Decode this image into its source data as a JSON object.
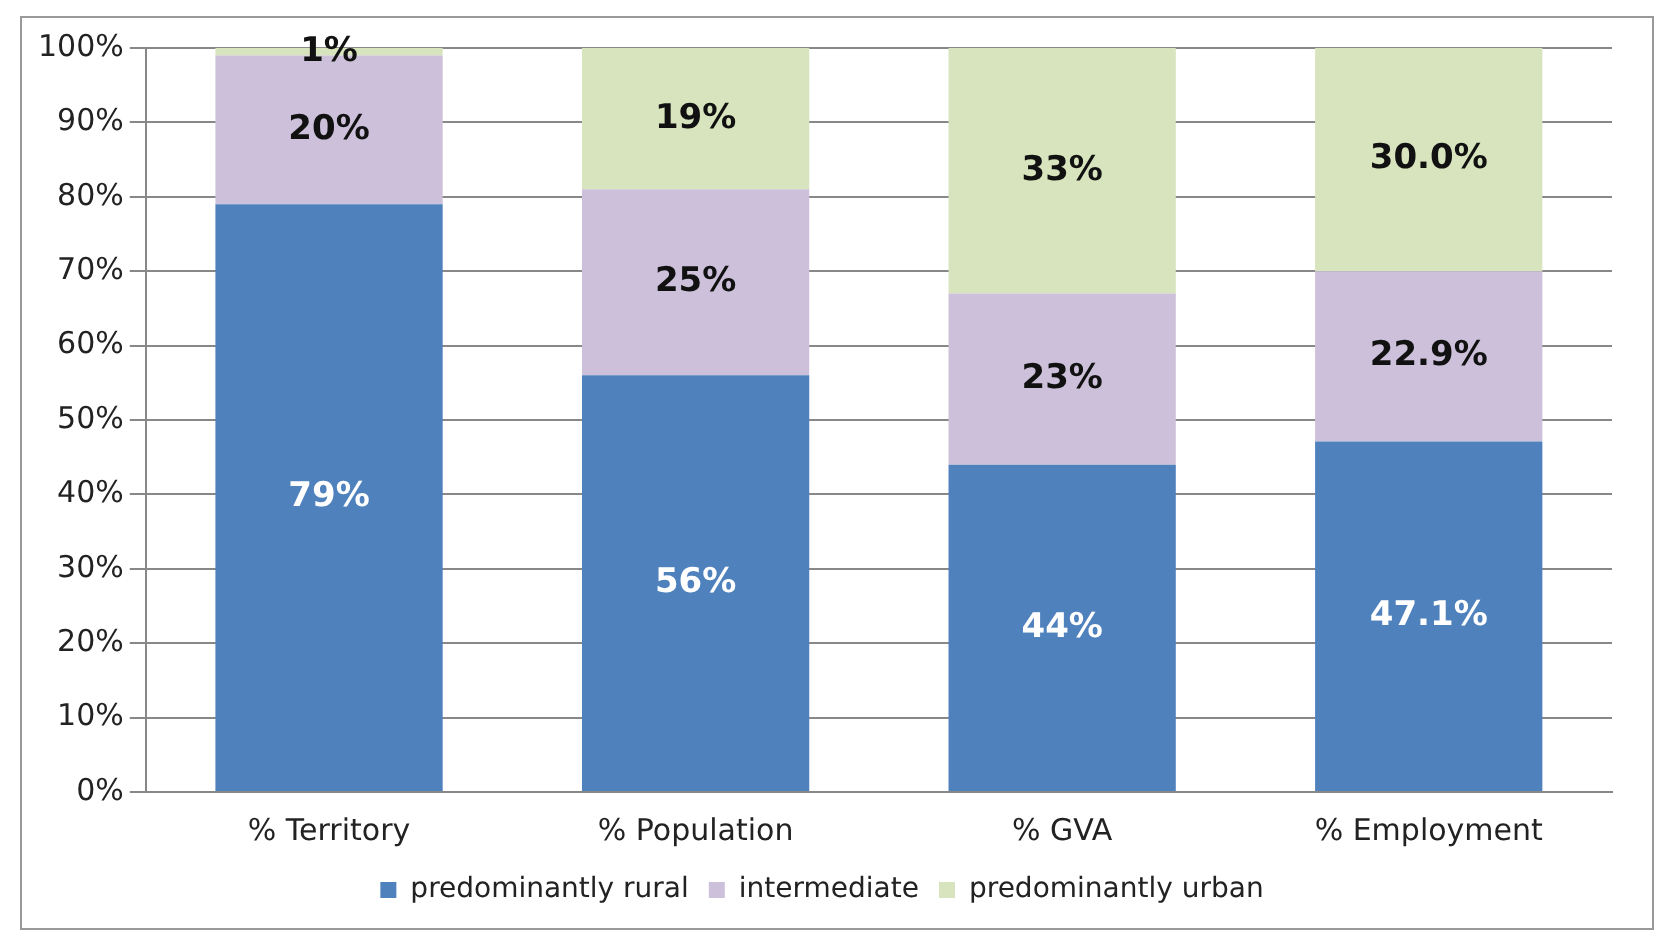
{
  "chart_data": {
    "type": "bar",
    "stacked": true,
    "categories": [
      "% Territory",
      "% Population",
      "% GVA",
      "% Employment"
    ],
    "series": [
      {
        "name": "predominantly rural",
        "color": "#4f81bd",
        "values": [
          79,
          56,
          44,
          47.1
        ],
        "value_labels": [
          "79%",
          "56%",
          "44%",
          "47.1%"
        ]
      },
      {
        "name": "intermediate",
        "color": "#ccc0da",
        "values": [
          20,
          25,
          23,
          22.9
        ],
        "value_labels": [
          "20%",
          "25%",
          "23%",
          "22.9%"
        ]
      },
      {
        "name": "predominantly urban",
        "color": "#d7e4bd",
        "values": [
          1,
          19,
          33,
          30.0
        ],
        "value_labels": [
          "1%",
          "19%",
          "33%",
          "30.0%"
        ]
      }
    ],
    "ylim": [
      0,
      100
    ],
    "yticks": [
      {
        "value": 0,
        "label": "0%"
      },
      {
        "value": 10,
        "label": "10%"
      },
      {
        "value": 20,
        "label": "20%"
      },
      {
        "value": 30,
        "label": "30%"
      },
      {
        "value": 40,
        "label": "40%"
      },
      {
        "value": 50,
        "label": "50%"
      },
      {
        "value": 60,
        "label": "60%"
      },
      {
        "value": 70,
        "label": "70%"
      },
      {
        "value": 80,
        "label": "80%"
      },
      {
        "value": 90,
        "label": "90%"
      },
      {
        "value": 100,
        "label": "100%"
      }
    ],
    "grid": "y",
    "legend": "bottom"
  }
}
